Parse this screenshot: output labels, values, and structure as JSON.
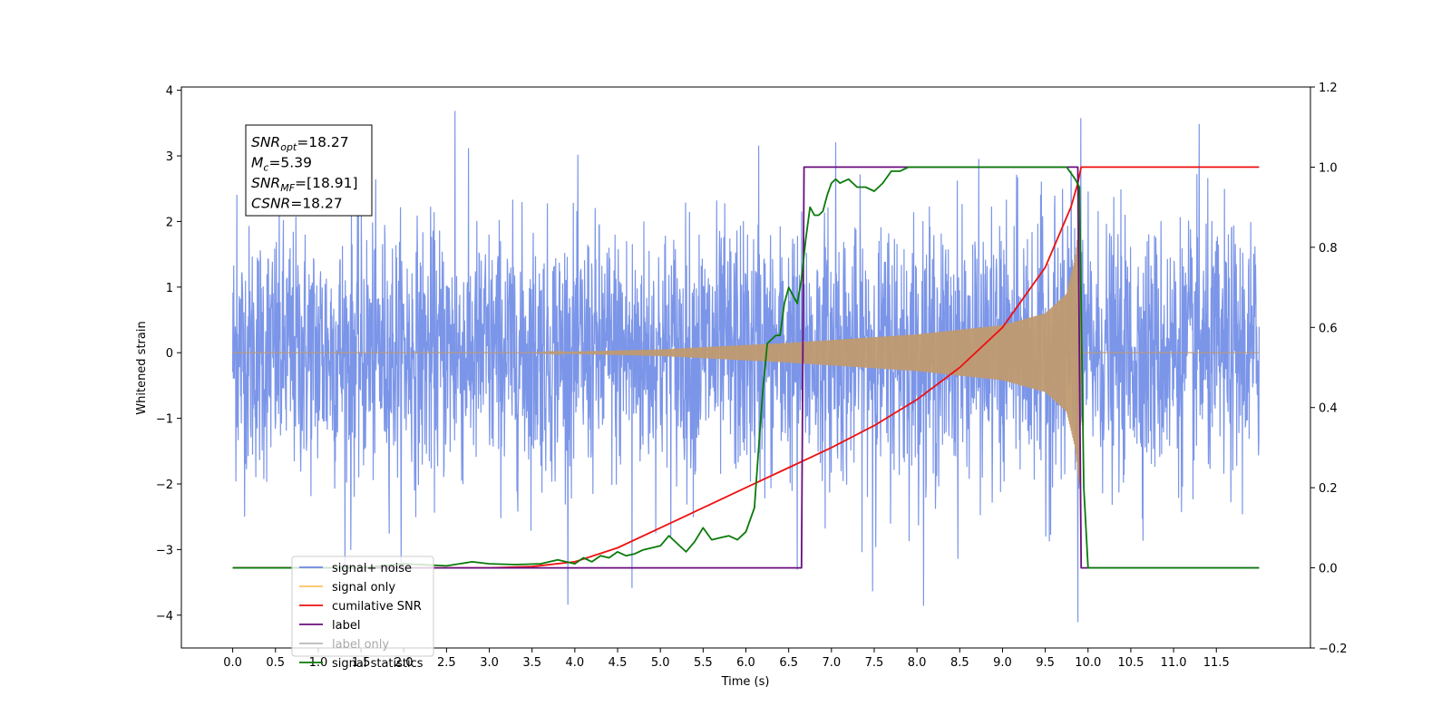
{
  "chart_data": {
    "type": "line",
    "xlabel": "Time (s)",
    "ylabel": "Whitened strain",
    "ylabel_right": "",
    "xlim": [
      -0.6,
      12.6
    ],
    "ylim": [
      -4.5,
      4.05
    ],
    "ylim_right": [
      -0.2,
      1.2
    ],
    "x_ticks": [
      "0.0",
      "0.5",
      "1.0",
      "1.5",
      "2.0",
      "2.5",
      "3.0",
      "3.5",
      "4.0",
      "4.5",
      "5.0",
      "5.5",
      "6.0",
      "6.5",
      "7.0",
      "7.5",
      "8.0",
      "8.5",
      "9.0",
      "9.5",
      "10.0",
      "10.5",
      "11.0",
      "11.5"
    ],
    "y_ticks_left": [
      4,
      3,
      2,
      1,
      0,
      -1,
      -2,
      -3,
      -4
    ],
    "y_tick_labels_left": [
      "4",
      "3",
      "2",
      "1",
      "0",
      "−1",
      "−2",
      "−3",
      "−4"
    ],
    "y_ticks_right": [
      1.2,
      1.0,
      0.8,
      0.6,
      0.4,
      0.2,
      0.0,
      -0.2
    ],
    "y_tick_labels_right": [
      "1.2",
      "1.0",
      "0.8",
      "0.6",
      "0.4",
      "0.2",
      "0.0",
      "−0.2"
    ],
    "grid": false,
    "legend_position": "lower-left",
    "annotation": {
      "lines": [
        {
          "base": "SNR",
          "sub": "opt",
          "value": "=18.27"
        },
        {
          "base": "M",
          "sub": "c",
          "value": "=5.39"
        },
        {
          "base": "SNR",
          "sub": "MF",
          "value": "=[18.91]"
        },
        {
          "base": "CSNR",
          "sub": "",
          "value": "=18.27"
        }
      ]
    },
    "series": [
      {
        "name": "signal+ noise",
        "color": "#7b95e8",
        "axis": "left",
        "x_range": [
          0.0,
          12.0
        ],
        "noise_std": 1.0,
        "spikes": [
          [
            2.6,
            3.68
          ],
          [
            11.3,
            3.48
          ],
          [
            9.88,
            -4.1
          ],
          [
            7.48,
            -3.63
          ],
          [
            4.67,
            -3.58
          ],
          [
            1.38,
            -3.0
          ],
          [
            6.6,
            -3.3
          ],
          [
            0.05,
            2.4
          ],
          [
            6.15,
            3.15
          ],
          [
            7.05,
            3.2
          ]
        ]
      },
      {
        "name": "signal only",
        "color": "#ffc060",
        "axis": "left",
        "x_range": [
          0.0,
          12.0
        ],
        "envelope": {
          "x": [
            0.0,
            3.5,
            5.0,
            6.5,
            8.0,
            9.0,
            9.5,
            9.75,
            9.85,
            9.9,
            9.93
          ],
          "amp": [
            0.0,
            0.0,
            0.05,
            0.15,
            0.28,
            0.42,
            0.6,
            0.9,
            1.45,
            2.05,
            0.0
          ]
        }
      },
      {
        "name": "cumilative SNR",
        "color": "#ee1111",
        "axis": "right",
        "x": [
          0.0,
          3.0,
          3.5,
          4.0,
          4.5,
          5.0,
          5.5,
          6.0,
          6.5,
          7.0,
          7.5,
          8.0,
          8.5,
          9.0,
          9.5,
          9.8,
          9.88,
          9.92,
          10.0,
          12.0
        ],
        "y": [
          0.0,
          0.0,
          0.003,
          0.015,
          0.05,
          0.1,
          0.15,
          0.2,
          0.25,
          0.3,
          0.355,
          0.42,
          0.5,
          0.6,
          0.75,
          0.9,
          0.96,
          1.0,
          1.0,
          1.0
        ]
      },
      {
        "name": "label",
        "color": "#6a0e7e",
        "axis": "right",
        "x": [
          0.0,
          6.65,
          6.68,
          9.88,
          9.92,
          12.0
        ],
        "y": [
          0.0,
          0.0,
          1.0,
          1.0,
          0.0,
          0.0
        ]
      },
      {
        "name": "label only",
        "color": "#d9d9d9",
        "axis": "right",
        "x": [],
        "y": []
      },
      {
        "name": "signal statistics",
        "color": "#0a7a0a",
        "axis": "right",
        "x": [
          0.0,
          1.5,
          2.0,
          2.5,
          2.8,
          3.0,
          3.3,
          3.6,
          3.8,
          4.0,
          4.1,
          4.2,
          4.3,
          4.4,
          4.5,
          4.6,
          4.7,
          4.8,
          4.9,
          5.0,
          5.1,
          5.2,
          5.3,
          5.4,
          5.5,
          5.6,
          5.7,
          5.8,
          5.9,
          6.0,
          6.1,
          6.15,
          6.2,
          6.25,
          6.3,
          6.35,
          6.4,
          6.45,
          6.5,
          6.6,
          6.65,
          6.7,
          6.75,
          6.8,
          6.85,
          6.9,
          6.95,
          7.0,
          7.05,
          7.1,
          7.2,
          7.3,
          7.4,
          7.5,
          7.6,
          7.7,
          7.8,
          7.9,
          8.0,
          8.2,
          8.5,
          9.0,
          9.5,
          9.75,
          9.85,
          9.9,
          9.95,
          10.0,
          10.05,
          11.0,
          12.0
        ],
        "y": [
          0.0,
          0.0,
          0.01,
          0.005,
          0.015,
          0.01,
          0.008,
          0.01,
          0.02,
          0.01,
          0.025,
          0.015,
          0.03,
          0.025,
          0.04,
          0.03,
          0.035,
          0.045,
          0.05,
          0.055,
          0.08,
          0.06,
          0.04,
          0.065,
          0.1,
          0.07,
          0.075,
          0.08,
          0.07,
          0.09,
          0.15,
          0.3,
          0.45,
          0.56,
          0.57,
          0.58,
          0.58,
          0.66,
          0.7,
          0.66,
          0.72,
          0.82,
          0.9,
          0.88,
          0.88,
          0.89,
          0.93,
          0.96,
          0.97,
          0.96,
          0.97,
          0.95,
          0.95,
          0.94,
          0.96,
          0.99,
          0.99,
          1.0,
          1.0,
          1.0,
          1.0,
          1.0,
          1.0,
          1.0,
          0.97,
          0.95,
          0.2,
          0.0,
          0.0,
          0.0,
          0.0
        ]
      }
    ]
  }
}
